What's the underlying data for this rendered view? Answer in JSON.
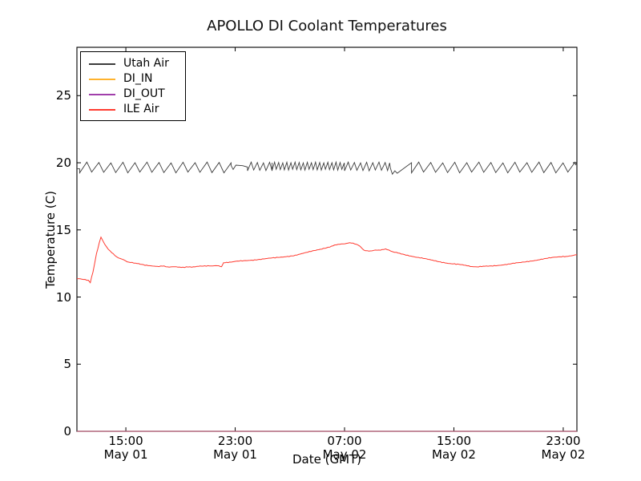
{
  "chart_data": {
    "type": "line",
    "title": "APOLLO DI Coolant Temperatures",
    "xlabel": "Date (GMT)",
    "ylabel": "Temperature (C)",
    "grid": false,
    "legend_position": "upper left",
    "x_unit": "hours since May 01 00:00 GMT",
    "xlim": [
      11.42,
      48.0
    ],
    "ylim": [
      0,
      28.6
    ],
    "yticks": [
      0,
      5,
      10,
      15,
      20,
      25
    ],
    "xticks": [
      {
        "t": 15,
        "time": "15:00",
        "date": "May 01"
      },
      {
        "t": 23,
        "time": "23:00",
        "date": "May 01"
      },
      {
        "t": 31,
        "time": "07:00",
        "date": "May 02"
      },
      {
        "t": 39,
        "time": "15:00",
        "date": "May 02"
      },
      {
        "t": 47,
        "time": "23:00",
        "date": "May 02"
      }
    ],
    "frame_color": "#000000",
    "series": [
      {
        "name": "Utah Air",
        "color": "#3c3c3c",
        "width": 0.9,
        "opacity": 1,
        "pattern": "sawtooth",
        "segments": [
          {
            "vpts": [
              [
                11.42,
                19.55
              ],
              [
                11.62,
                19.55
              ]
            ]
          },
          {
            "t0": 11.62,
            "t1": 22.7,
            "period": 0.88,
            "lo": 19.25,
            "hi": 20.05
          },
          {
            "vpts": [
              [
                22.7,
                19.8
              ],
              [
                22.85,
                19.5
              ],
              [
                23.05,
                19.82
              ],
              [
                23.55,
                19.78
              ],
              [
                23.9,
                19.68
              ]
            ]
          },
          {
            "t0": 23.9,
            "t1": 25.7,
            "period": 0.45,
            "lo": 19.4,
            "hi": 20.05
          },
          {
            "t0": 25.7,
            "t1": 31.0,
            "period": 0.3,
            "lo": 19.45,
            "hi": 20.05
          },
          {
            "t0": 31.0,
            "t1": 34.3,
            "period": 0.45,
            "lo": 19.4,
            "hi": 20.05
          },
          {
            "vpts": [
              [
                34.35,
                19.6
              ],
              [
                34.5,
                19.15
              ],
              [
                34.68,
                19.4
              ],
              [
                34.85,
                19.22
              ],
              [
                35.9,
                20.0
              ]
            ]
          },
          {
            "t0": 35.9,
            "t1": 47.9,
            "period": 0.88,
            "lo": 19.25,
            "hi": 20.05
          },
          {
            "vpts": [
              [
                47.9,
                19.85
              ],
              [
                48.0,
                19.95
              ]
            ]
          }
        ]
      },
      {
        "name": "DI_IN",
        "color": "#ffb32e",
        "width": 1.2,
        "opacity": 0.75,
        "points": [
          [
            11.42,
            0
          ],
          [
            48.0,
            0
          ]
        ]
      },
      {
        "name": "DI_OUT",
        "color": "#a13fab",
        "width": 1.2,
        "opacity": 0.65,
        "points": [
          [
            11.42,
            0
          ],
          [
            48.0,
            0
          ]
        ]
      },
      {
        "name": "ILE Air",
        "color": "#ff3b30",
        "width": 1,
        "opacity": 1,
        "noise": 0.045,
        "points": [
          [
            11.42,
            11.35
          ],
          [
            11.9,
            11.32
          ],
          [
            12.25,
            11.27
          ],
          [
            12.4,
            11.08
          ],
          [
            12.6,
            11.9
          ],
          [
            12.85,
            13.2
          ],
          [
            13.05,
            14.0
          ],
          [
            13.18,
            14.45
          ],
          [
            13.35,
            14.15
          ],
          [
            13.55,
            13.8
          ],
          [
            13.85,
            13.4
          ],
          [
            14.2,
            13.1
          ],
          [
            14.6,
            12.85
          ],
          [
            15.1,
            12.65
          ],
          [
            15.7,
            12.5
          ],
          [
            16.4,
            12.38
          ],
          [
            17.3,
            12.3
          ],
          [
            18.3,
            12.25
          ],
          [
            19.3,
            12.22
          ],
          [
            20.2,
            12.26
          ],
          [
            21.0,
            12.32
          ],
          [
            21.7,
            12.36
          ],
          [
            22.0,
            12.28
          ],
          [
            22.15,
            12.55
          ],
          [
            22.7,
            12.6
          ],
          [
            23.4,
            12.68
          ],
          [
            24.2,
            12.76
          ],
          [
            25.0,
            12.83
          ],
          [
            25.8,
            12.9
          ],
          [
            26.6,
            13.0
          ],
          [
            27.4,
            13.12
          ],
          [
            28.2,
            13.3
          ],
          [
            29.0,
            13.5
          ],
          [
            29.8,
            13.72
          ],
          [
            30.4,
            13.88
          ],
          [
            30.9,
            13.98
          ],
          [
            31.5,
            14.02
          ],
          [
            32.0,
            13.9
          ],
          [
            32.4,
            13.5
          ],
          [
            32.9,
            13.42
          ],
          [
            33.5,
            13.5
          ],
          [
            34.0,
            13.57
          ],
          [
            34.5,
            13.38
          ],
          [
            34.8,
            13.3
          ],
          [
            35.5,
            13.15
          ],
          [
            36.3,
            12.95
          ],
          [
            37.1,
            12.8
          ],
          [
            37.9,
            12.65
          ],
          [
            38.7,
            12.5
          ],
          [
            39.5,
            12.4
          ],
          [
            40.2,
            12.3
          ],
          [
            40.8,
            12.24
          ],
          [
            41.5,
            12.3
          ],
          [
            42.3,
            12.38
          ],
          [
            43.1,
            12.46
          ],
          [
            43.9,
            12.56
          ],
          [
            44.7,
            12.7
          ],
          [
            45.5,
            12.84
          ],
          [
            46.3,
            12.94
          ],
          [
            47.1,
            13.02
          ],
          [
            47.7,
            13.1
          ],
          [
            48.0,
            13.15
          ]
        ]
      }
    ]
  }
}
